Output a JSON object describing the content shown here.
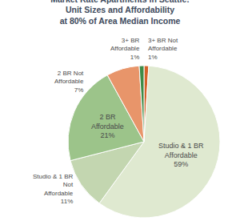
{
  "chart_data": {
    "type": "pie",
    "title": "Market Rate Apartments in Seattle:",
    "subtitle": "Unit Sizes and Affordability at 80% of Area Median Income",
    "categories": [
      "3+ BR Not Affordable",
      "Studio & 1 BR Affordable",
      "Studio & 1 BR Not Affordable",
      "2 BR Affordable",
      "2 BR Not Affordable",
      "3+ BR Affordable"
    ],
    "values": [
      1,
      59,
      11,
      21,
      7,
      1
    ],
    "value_labels": [
      "1%",
      "59%",
      "11%",
      "21%",
      "7%",
      "1%"
    ],
    "colors": [
      "#d4622a",
      "#dfe9d0",
      "#c3d6b0",
      "#9cc48a",
      "#e8956a",
      "#3d8b47"
    ],
    "data_labels": true
  }
}
